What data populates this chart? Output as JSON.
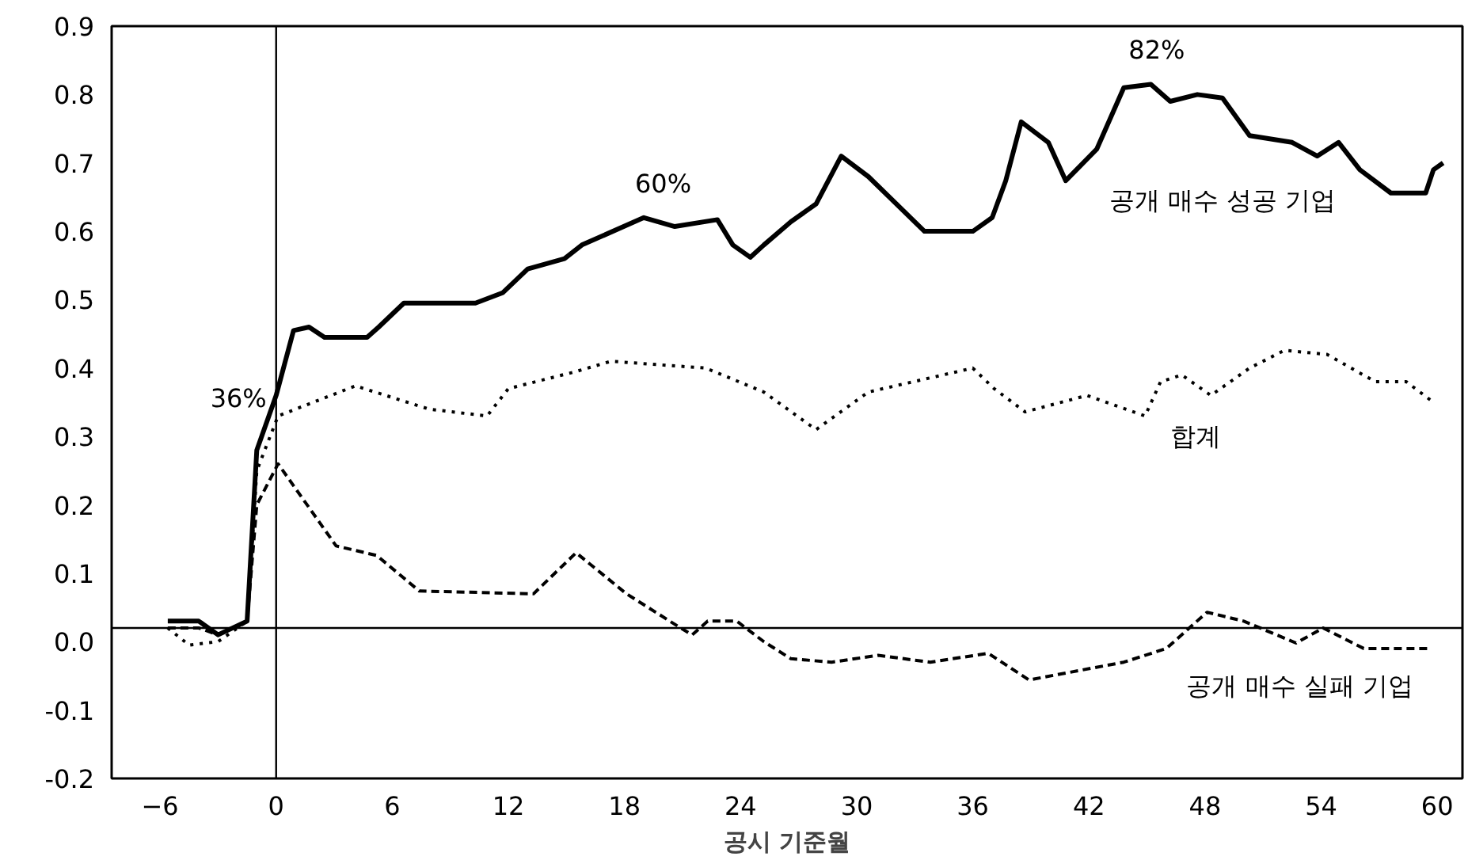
{
  "chart_data": {
    "type": "line",
    "xlabel": "공시 기준월",
    "xlim": [
      -8.5,
      61.3
    ],
    "ylim": [
      -0.2,
      0.9
    ],
    "xticks": [
      -6,
      0,
      6,
      12,
      18,
      24,
      30,
      36,
      42,
      48,
      54,
      60
    ],
    "yticks": [
      {
        "value": 0.9,
        "label": "0.9"
      },
      {
        "value": 0.8,
        "label": "0.8"
      },
      {
        "value": 0.7,
        "label": "0.7"
      },
      {
        "value": 0.6,
        "label": "0.6"
      },
      {
        "value": 0.5,
        "label": "0.5"
      },
      {
        "value": 0.4,
        "label": "0.4"
      },
      {
        "value": 0.3,
        "label": "0.3"
      },
      {
        "value": 0.2,
        "label": "0.2"
      },
      {
        "value": 0.1,
        "label": "0.1"
      },
      {
        "value": 0,
        "label": "0.0"
      },
      {
        "value": -0.1,
        "label": "-0.1"
      },
      {
        "value": -0.2,
        "label": "-0.2"
      }
    ],
    "grid": false,
    "marker": "none",
    "ref_lines": [
      {
        "axis": "x",
        "value": 0,
        "color": "#000000"
      },
      {
        "axis": "y",
        "value": 0.02,
        "color": "#000000"
      }
    ],
    "series": [
      {
        "name": "공개 매수 성공 기업",
        "color": "#000000",
        "line_style": "solid",
        "x": [
          -5.6,
          -4,
          -3,
          -1.5,
          -1,
          0,
          0.9,
          1.7,
          2.5,
          4.7,
          5.3,
          6.6,
          10.3,
          11.7,
          13,
          14.9,
          15.8,
          19,
          20.6,
          22.8,
          23.6,
          24.5,
          25.2,
          26.6,
          27.9,
          29.2,
          30.6,
          33.5,
          36,
          37,
          37.7,
          38.5,
          39.9,
          40.8,
          42.4,
          43.8,
          45.2,
          46.2,
          47.6,
          48.9,
          50.3,
          52.5,
          53.8,
          54.9,
          56,
          57.6,
          59.4,
          59.8,
          60.3
        ],
        "values": [
          0.03,
          0.03,
          0.01,
          0.03,
          0.28,
          0.36,
          0.455,
          0.46,
          0.445,
          0.445,
          0.46,
          0.495,
          0.495,
          0.51,
          0.545,
          0.56,
          0.58,
          0.62,
          0.607,
          0.617,
          0.58,
          0.562,
          0.58,
          0.614,
          0.64,
          0.71,
          0.68,
          0.6,
          0.6,
          0.62,
          0.674,
          0.76,
          0.73,
          0.674,
          0.72,
          0.81,
          0.815,
          0.79,
          0.8,
          0.795,
          0.74,
          0.73,
          0.71,
          0.73,
          0.69,
          0.656,
          0.656,
          0.69,
          0.7
        ]
      },
      {
        "name": "합계",
        "color": "#000000",
        "line_style": "dotted",
        "x": [
          -5.6,
          -4.5,
          -3,
          -1.5,
          -1,
          0.1,
          4.1,
          7.9,
          10.9,
          12,
          15.5,
          17.3,
          22.2,
          25.2,
          27.9,
          30.6,
          36,
          37.1,
          38.7,
          41.9,
          44.9,
          45.7,
          46.8,
          48.3,
          50.3,
          52.1,
          54.3,
          56.8,
          58.4,
          59.8
        ],
        "values": [
          0.02,
          -0.005,
          0.0,
          0.03,
          0.25,
          0.33,
          0.374,
          0.34,
          0.33,
          0.37,
          0.395,
          0.41,
          0.4,
          0.365,
          0.31,
          0.365,
          0.4,
          0.37,
          0.336,
          0.36,
          0.33,
          0.38,
          0.39,
          0.36,
          0.4,
          0.426,
          0.42,
          0.38,
          0.38,
          0.35
        ]
      },
      {
        "name": "공개 매수 실패 기업",
        "color": "#000000",
        "line_style": "dashed",
        "x": [
          -5.6,
          -4,
          -3,
          -1.5,
          -1,
          0.1,
          3.1,
          5.2,
          7.4,
          13.3,
          15.5,
          18.1,
          20.9,
          21.5,
          22.3,
          23.8,
          25.2,
          26.6,
          28.7,
          31.1,
          33.8,
          36.8,
          38.9,
          43.8,
          46,
          48.1,
          50,
          52.7,
          54.1,
          56.2,
          59.6
        ],
        "values": [
          0.02,
          0.02,
          0.01,
          0.03,
          0.2,
          0.26,
          0.14,
          0.126,
          0.074,
          0.07,
          0.13,
          0.07,
          0.02,
          0.01,
          0.03,
          0.03,
          0.0,
          -0.025,
          -0.03,
          -0.02,
          -0.03,
          -0.017,
          -0.056,
          -0.03,
          -0.01,
          0.043,
          0.03,
          -0.002,
          0.02,
          -0.01,
          -0.01
        ]
      }
    ],
    "annotations": [
      {
        "text": "36%",
        "x": 0,
        "y": 0.36
      },
      {
        "text": "60%",
        "x": 20,
        "y": 0.62
      },
      {
        "text": "82%",
        "x": 45.5,
        "y": 0.815
      }
    ]
  }
}
